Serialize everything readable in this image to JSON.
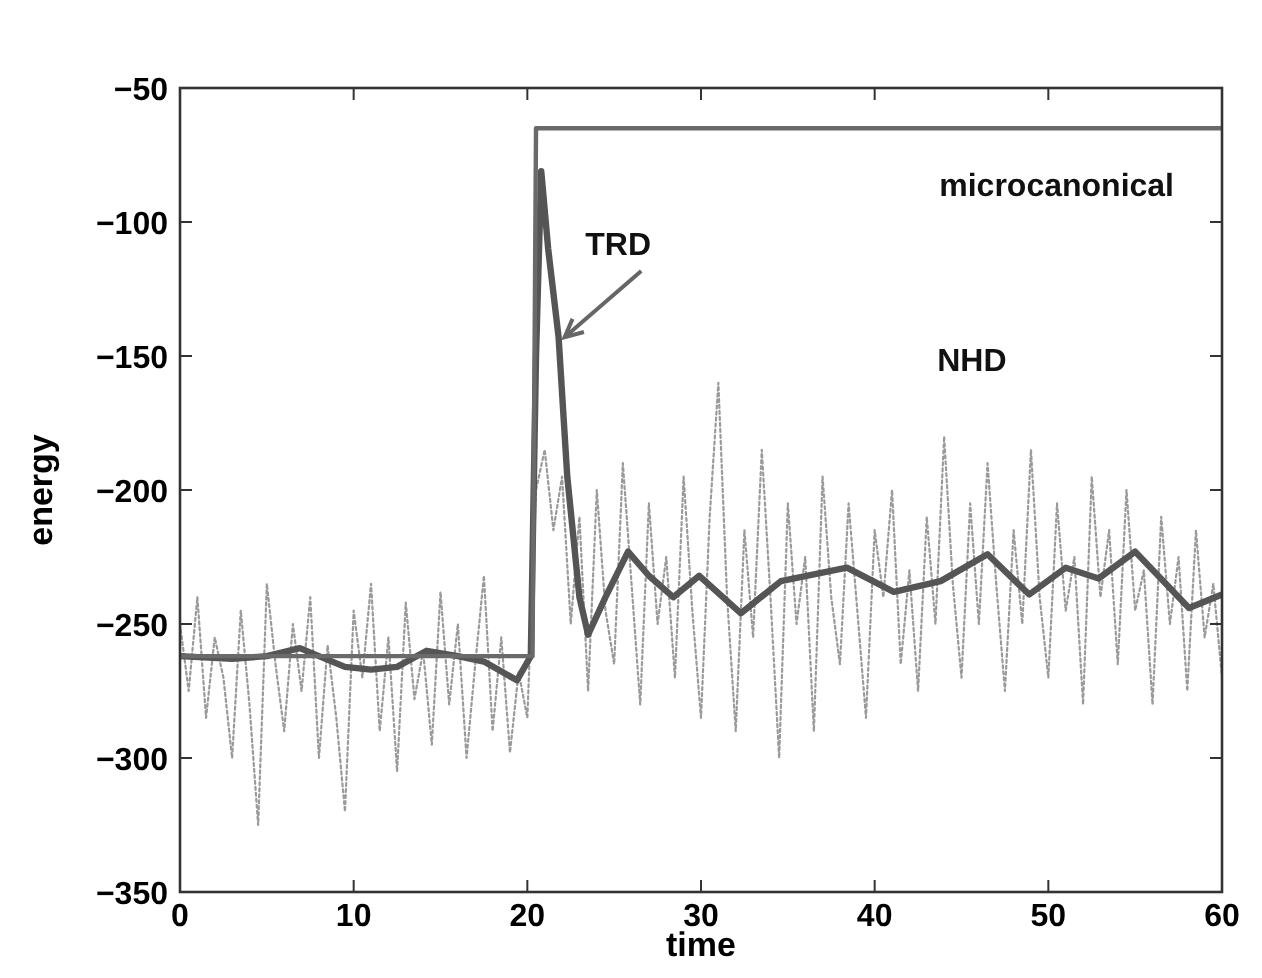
{
  "chart_data": {
    "type": "line",
    "xlabel": "time",
    "ylabel": "energy",
    "xlim": [
      0,
      60
    ],
    "ylim": [
      -350,
      -50
    ],
    "xticks": [
      0,
      10,
      20,
      30,
      40,
      50,
      60
    ],
    "yticks": [
      -350,
      -300,
      -250,
      -200,
      -150,
      -100,
      -50
    ],
    "grid": false,
    "marker": "none",
    "series": [
      {
        "name": "microcanonical",
        "color": "#6a6a6a",
        "line_style": "solid",
        "x": [
          0,
          20.3,
          20.5,
          60
        ],
        "values": [
          -262,
          -262,
          -65,
          -65
        ]
      },
      {
        "name": "TRD",
        "color": "#555555",
        "line_style": "solid",
        "x": [
          0,
          3,
          5,
          6.9,
          8,
          9.5,
          11,
          12.5,
          14.2,
          16,
          17.5,
          19.4,
          20.2,
          20.5,
          20.8,
          21.2,
          21.8,
          22.3,
          23,
          23.5,
          24.5,
          25.8,
          27,
          28.4,
          29.9,
          32.3,
          34.6,
          38.4,
          41.1,
          43.8,
          46.5,
          48.9,
          51,
          52.9,
          55,
          58.1,
          60
        ],
        "values": [
          -262,
          -263,
          -262,
          -259,
          -262,
          -266,
          -267,
          -266,
          -260,
          -262,
          -264,
          -271,
          -262,
          -150,
          -81,
          -110,
          -143,
          -195,
          -240,
          -254,
          -240,
          -223,
          -232,
          -240,
          -232,
          -246,
          -234,
          -229,
          -238,
          -234,
          -224,
          -239,
          -229,
          -233,
          -223,
          -244,
          -239
        ]
      },
      {
        "name": "NHD",
        "color": "#9a9a9a",
        "line_style": "dotted",
        "x": [
          0,
          0.5,
          1,
          1.5,
          2,
          2.5,
          3,
          3.5,
          4,
          4.5,
          5,
          5.5,
          6,
          6.5,
          7,
          7.5,
          8,
          8.5,
          9,
          9.5,
          10,
          10.5,
          11,
          11.5,
          12,
          12.5,
          13,
          13.5,
          14,
          14.5,
          15,
          15.5,
          16,
          16.5,
          17,
          17.5,
          18,
          18.5,
          19,
          19.5,
          20,
          20.5,
          21,
          21.5,
          22,
          22.5,
          23,
          23.5,
          24,
          24.5,
          25,
          25.5,
          26,
          26.5,
          27,
          27.5,
          28,
          28.5,
          29,
          29.5,
          30,
          30.5,
          31,
          31.5,
          32,
          32.5,
          33,
          33.5,
          34,
          34.5,
          35,
          35.5,
          36,
          36.5,
          37,
          37.5,
          38,
          38.5,
          39,
          39.5,
          40,
          40.5,
          41,
          41.5,
          42,
          42.5,
          43,
          43.5,
          44,
          44.5,
          45,
          45.5,
          46,
          46.5,
          47,
          47.5,
          48,
          48.5,
          49,
          49.5,
          50,
          50.5,
          51,
          51.5,
          52,
          52.5,
          53,
          53.5,
          54,
          54.5,
          55,
          55.5,
          56,
          56.5,
          57,
          57.5,
          58,
          58.5,
          59,
          59.5,
          60
        ],
        "values": [
          -250,
          -275,
          -240,
          -285,
          -255,
          -270,
          -300,
          -245,
          -280,
          -325,
          -235,
          -265,
          -290,
          -250,
          -275,
          -240,
          -300,
          -258,
          -285,
          -320,
          -245,
          -270,
          -235,
          -290,
          -255,
          -305,
          -242,
          -278,
          -260,
          -295,
          -238,
          -280,
          -250,
          -300,
          -265,
          -232,
          -290,
          -255,
          -298,
          -268,
          -285,
          -200,
          -185,
          -215,
          -195,
          -250,
          -210,
          -275,
          -200,
          -245,
          -265,
          -190,
          -235,
          -280,
          -205,
          -250,
          -225,
          -270,
          -195,
          -245,
          -285,
          -210,
          -160,
          -240,
          -290,
          -215,
          -255,
          -185,
          -240,
          -300,
          -205,
          -250,
          -225,
          -290,
          -195,
          -240,
          -265,
          -205,
          -245,
          -285,
          -215,
          -240,
          -200,
          -265,
          -230,
          -275,
          -210,
          -250,
          -180,
          -235,
          -270,
          -205,
          -250,
          -190,
          -235,
          -275,
          -215,
          -250,
          -185,
          -240,
          -270,
          -205,
          -245,
          -225,
          -280,
          -195,
          -240,
          -215,
          -265,
          -200,
          -245,
          -230,
          -280,
          -210,
          -250,
          -225,
          -275,
          -215,
          -255,
          -235,
          -270
        ]
      }
    ]
  }
}
